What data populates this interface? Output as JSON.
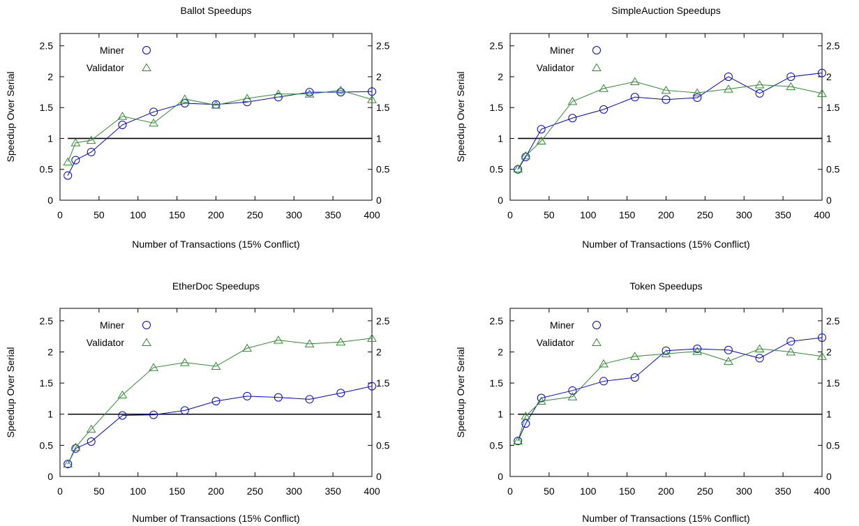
{
  "chart_data": [
    {
      "type": "line",
      "title": "Ballot Speedups",
      "xlabel": "Number of Transactions (15% Conflict)",
      "ylabel": "Speedup Over Serial",
      "xlim": [
        0,
        400
      ],
      "ylim": [
        0,
        2.7
      ],
      "xticks": [
        "0",
        "50",
        "100",
        "150",
        "200",
        "250",
        "300",
        "350",
        "400"
      ],
      "yticks": [
        "0",
        "0.5",
        "1",
        "1.5",
        "2",
        "2.5"
      ],
      "y2ticks": [
        "0",
        "0.5",
        "1",
        "1.5",
        "2",
        "2.5"
      ],
      "baseline": 1,
      "legend_position": "top-left",
      "x": [
        10,
        20,
        40,
        80,
        120,
        160,
        200,
        240,
        280,
        320,
        360,
        400
      ],
      "series": [
        {
          "name": "Miner",
          "marker": "circle",
          "color": "#0000e6",
          "values": [
            0.4,
            0.65,
            0.78,
            1.22,
            1.43,
            1.57,
            1.55,
            1.59,
            1.67,
            1.75,
            1.75,
            1.76
          ]
        },
        {
          "name": "Validator",
          "marker": "triangle",
          "color": "#2e8b2e",
          "values": [
            0.62,
            0.93,
            0.97,
            1.36,
            1.25,
            1.64,
            1.54,
            1.65,
            1.72,
            1.72,
            1.78,
            1.63
          ]
        }
      ]
    },
    {
      "type": "line",
      "title": "SimpleAuction Speedups",
      "xlabel": "Number of Transactions (15% Conflict)",
      "ylabel": "Speedup Over Serial",
      "xlim": [
        0,
        400
      ],
      "ylim": [
        0,
        2.7
      ],
      "xticks": [
        "0",
        "50",
        "100",
        "150",
        "200",
        "250",
        "300",
        "350",
        "400"
      ],
      "yticks": [
        "0",
        "0.5",
        "1",
        "1.5",
        "2",
        "2.5"
      ],
      "y2ticks": [
        "0",
        "0.5",
        "1",
        "1.5",
        "2",
        "2.5"
      ],
      "baseline": 1,
      "legend_position": "top-left",
      "x": [
        10,
        20,
        40,
        80,
        120,
        160,
        200,
        240,
        280,
        320,
        360,
        400
      ],
      "series": [
        {
          "name": "Miner",
          "marker": "circle",
          "color": "#0000e6",
          "values": [
            0.5,
            0.7,
            1.15,
            1.33,
            1.47,
            1.67,
            1.63,
            1.66,
            2.0,
            1.73,
            2.0,
            2.06
          ]
        },
        {
          "name": "Validator",
          "marker": "triangle",
          "color": "#2e8b2e",
          "values": [
            0.51,
            0.72,
            0.96,
            1.6,
            1.81,
            1.92,
            1.78,
            1.74,
            1.8,
            1.87,
            1.84,
            1.73
          ]
        }
      ]
    },
    {
      "type": "line",
      "title": "EtherDoc Speedups",
      "xlabel": "Number of Transactions (15% Conflict)",
      "ylabel": "Speedup Over Serial",
      "xlim": [
        0,
        400
      ],
      "ylim": [
        0,
        2.7
      ],
      "xticks": [
        "0",
        "50",
        "100",
        "150",
        "200",
        "250",
        "300",
        "350",
        "400"
      ],
      "yticks": [
        "0",
        "0.5",
        "1",
        "1.5",
        "2",
        "2.5"
      ],
      "y2ticks": [
        "0",
        "0.5",
        "1",
        "1.5",
        "2",
        "2.5"
      ],
      "baseline": 1,
      "legend_position": "top-left",
      "x": [
        10,
        20,
        40,
        80,
        120,
        160,
        200,
        240,
        280,
        320,
        360,
        400
      ],
      "series": [
        {
          "name": "Miner",
          "marker": "circle",
          "color": "#0000e6",
          "values": [
            0.2,
            0.45,
            0.56,
            0.98,
            0.99,
            1.06,
            1.21,
            1.29,
            1.27,
            1.24,
            1.34,
            1.45
          ]
        },
        {
          "name": "Validator",
          "marker": "triangle",
          "color": "#2e8b2e",
          "values": [
            0.2,
            0.47,
            0.76,
            1.31,
            1.75,
            1.83,
            1.77,
            2.06,
            2.19,
            2.13,
            2.16,
            2.22
          ]
        }
      ]
    },
    {
      "type": "line",
      "title": "Token Speedups",
      "xlabel": "Number of Transactions (15% Conflict)",
      "ylabel": "Speedup Over Serial",
      "xlim": [
        0,
        400
      ],
      "ylim": [
        0,
        2.7
      ],
      "xticks": [
        "0",
        "50",
        "100",
        "150",
        "200",
        "250",
        "300",
        "350",
        "400"
      ],
      "yticks": [
        "0",
        "0.5",
        "1",
        "1.5",
        "2",
        "2.5"
      ],
      "y2ticks": [
        "0",
        "0.5",
        "1",
        "1.5",
        "2",
        "2.5"
      ],
      "baseline": 1,
      "legend_position": "top-left",
      "x": [
        10,
        20,
        40,
        80,
        120,
        160,
        200,
        240,
        280,
        320,
        360,
        400
      ],
      "series": [
        {
          "name": "Miner",
          "marker": "circle",
          "color": "#0000e6",
          "values": [
            0.57,
            0.85,
            1.26,
            1.38,
            1.53,
            1.59,
            2.02,
            2.05,
            2.03,
            1.9,
            2.17,
            2.23
          ]
        },
        {
          "name": "Validator",
          "marker": "triangle",
          "color": "#2e8b2e",
          "values": [
            0.57,
            0.97,
            1.21,
            1.28,
            1.81,
            1.93,
            1.97,
            2.01,
            1.85,
            2.05,
            2.0,
            1.93
          ]
        }
      ]
    }
  ]
}
